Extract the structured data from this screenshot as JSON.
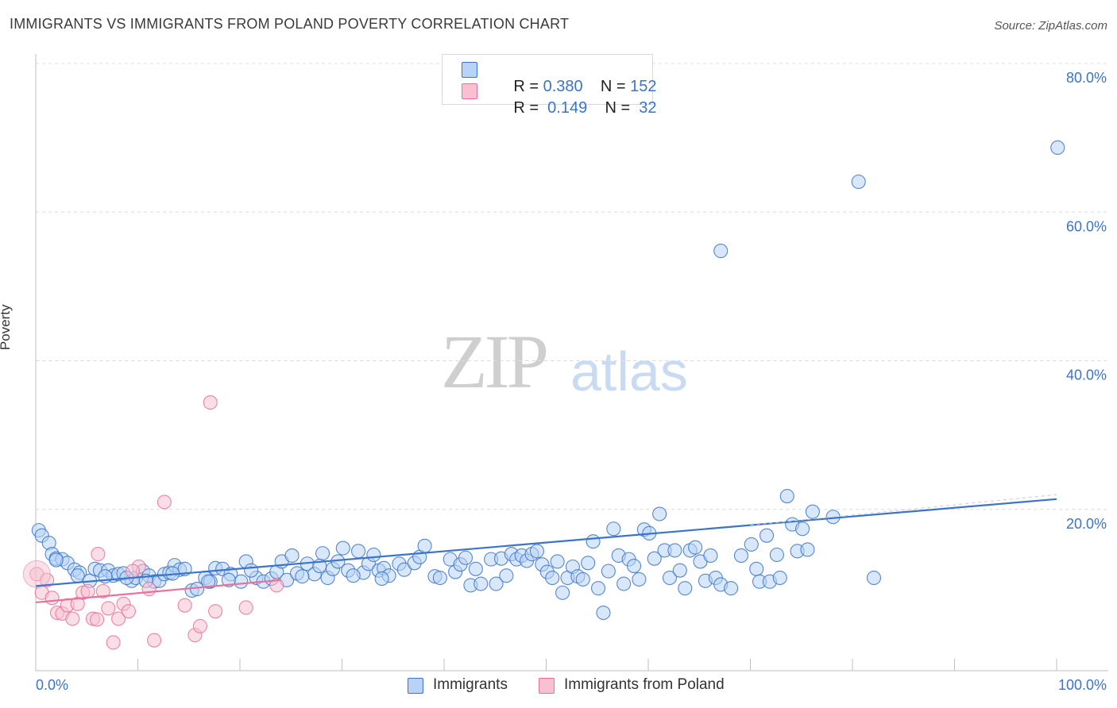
{
  "title": "IMMIGRANTS VS IMMIGRANTS FROM POLAND POVERTY CORRELATION CHART",
  "source": "Source: ZipAtlas.com",
  "watermark_zip": "ZIP",
  "watermark_atlas": "atlas",
  "colors": {
    "blue": "#3b74c9",
    "blue_fill": "#b8d3f5",
    "pink": "#e8719a",
    "pink_fill": "#f6c2d2"
  },
  "legend": {
    "r1_label": "R = ",
    "r1_value": "0.380",
    "n1_label": "N = ",
    "n1_value": "152",
    "r2_label": "R = ",
    "r2_value": " 0.149",
    "n2_label": "N = ",
    "n2_value": " 32"
  },
  "bottom_legend": {
    "s1": "Immigrants",
    "s2": "Immigrants from Poland"
  },
  "chart_data": {
    "type": "scatter",
    "title": "IMMIGRANTS VS IMMIGRANTS FROM POLAND POVERTY CORRELATION CHART",
    "xlabel": "",
    "ylabel": "Poverty",
    "xlim": [
      0,
      100
    ],
    "ylim": [
      0,
      80
    ],
    "y_ticks": [
      "20.0%",
      "40.0%",
      "60.0%",
      "80.0%"
    ],
    "x_ticks": [
      "0.0%",
      "100.0%"
    ],
    "grid": true,
    "series": [
      {
        "name": "Immigrants",
        "color": "#3b74c9",
        "trend": {
          "x": [
            0,
            100
          ],
          "y": [
            11.5,
            23.2
          ]
        },
        "points": [
          [
            0.3,
            19
          ],
          [
            0.6,
            18.3
          ],
          [
            1.3,
            17.3
          ],
          [
            1.6,
            15.8
          ],
          [
            2,
            15.2
          ],
          [
            2.6,
            15.1
          ],
          [
            3.1,
            14.6
          ],
          [
            3.8,
            13.7
          ],
          [
            4.3,
            13.3
          ],
          [
            5.3,
            12.2
          ],
          [
            5.8,
            13.8
          ],
          [
            6.3,
            13.6
          ],
          [
            7.1,
            13.6
          ],
          [
            7.6,
            12.9
          ],
          [
            8.1,
            13.1
          ],
          [
            8.6,
            13.2
          ],
          [
            9.4,
            12.2
          ],
          [
            9.8,
            12.6
          ],
          [
            10.5,
            13.5
          ],
          [
            11.1,
            12.9
          ],
          [
            11.6,
            12.1
          ],
          [
            12.1,
            12.2
          ],
          [
            12.6,
            13.1
          ],
          [
            13.1,
            13.3
          ],
          [
            13.6,
            14.3
          ],
          [
            14.1,
            13.7
          ],
          [
            14.6,
            13.8
          ],
          [
            15.3,
            10.9
          ],
          [
            15.8,
            11.1
          ],
          [
            16.6,
            12.6
          ],
          [
            17.1,
            12.1
          ],
          [
            17.6,
            13.9
          ],
          [
            18.3,
            13.8
          ],
          [
            19.1,
            13.1
          ],
          [
            20.1,
            12.1
          ],
          [
            20.6,
            14.8
          ],
          [
            21.6,
            12.6
          ],
          [
            22.3,
            12.1
          ],
          [
            23.1,
            12.5
          ],
          [
            23.6,
            13.4
          ],
          [
            24.1,
            14.8
          ],
          [
            24.6,
            12.3
          ],
          [
            25.6,
            13.2
          ],
          [
            26.6,
            14.5
          ],
          [
            27.3,
            13.1
          ],
          [
            28.1,
            15.9
          ],
          [
            28.6,
            12.6
          ],
          [
            29.1,
            13.8
          ],
          [
            30.1,
            16.6
          ],
          [
            30.6,
            13.6
          ],
          [
            31.6,
            16.2
          ],
          [
            32.1,
            13.3
          ],
          [
            32.6,
            14.5
          ],
          [
            33.1,
            15.7
          ],
          [
            33.6,
            13.6
          ],
          [
            34.1,
            13.9
          ],
          [
            34.6,
            12.9
          ],
          [
            35.6,
            14.5
          ],
          [
            36.1,
            13.7
          ],
          [
            37.1,
            14.6
          ],
          [
            37.6,
            15.4
          ],
          [
            38.1,
            16.9
          ],
          [
            39.1,
            12.8
          ],
          [
            39.6,
            12.6
          ],
          [
            40.6,
            15.1
          ],
          [
            41.1,
            13.4
          ],
          [
            41.6,
            14.4
          ],
          [
            42.1,
            15.3
          ],
          [
            42.6,
            11.6
          ],
          [
            43.1,
            13.8
          ],
          [
            43.6,
            11.8
          ],
          [
            44.6,
            15.1
          ],
          [
            45.1,
            11.8
          ],
          [
            45.6,
            15.2
          ],
          [
            46.1,
            12.9
          ],
          [
            46.6,
            15.8
          ],
          [
            47.1,
            15.1
          ],
          [
            47.6,
            15.6
          ],
          [
            48.1,
            14.9
          ],
          [
            48.6,
            15.8
          ],
          [
            49.1,
            16.2
          ],
          [
            49.6,
            14.4
          ],
          [
            50.1,
            13.4
          ],
          [
            50.6,
            12.6
          ],
          [
            51.1,
            14.8
          ],
          [
            51.6,
            10.6
          ],
          [
            52.1,
            12.6
          ],
          [
            52.6,
            14.1
          ],
          [
            53.1,
            12.8
          ],
          [
            53.6,
            12.4
          ],
          [
            54.1,
            14.6
          ],
          [
            54.6,
            17.5
          ],
          [
            55.1,
            11.2
          ],
          [
            55.6,
            7.9
          ],
          [
            56.1,
            13.5
          ],
          [
            56.6,
            19.2
          ],
          [
            57.1,
            15.6
          ],
          [
            57.6,
            11.8
          ],
          [
            58.1,
            15.1
          ],
          [
            58.6,
            14.2
          ],
          [
            59.1,
            12.4
          ],
          [
            59.6,
            19.1
          ],
          [
            60.1,
            18.6
          ],
          [
            60.6,
            15.2
          ],
          [
            61.1,
            21.2
          ],
          [
            61.6,
            16.3
          ],
          [
            62.1,
            12.6
          ],
          [
            62.6,
            16.3
          ],
          [
            63.1,
            13.6
          ],
          [
            63.6,
            11.2
          ],
          [
            64.1,
            16.3
          ],
          [
            64.6,
            16.7
          ],
          [
            65.1,
            14.8
          ],
          [
            65.6,
            12.2
          ],
          [
            66.1,
            15.6
          ],
          [
            66.6,
            12.6
          ],
          [
            67.1,
            11.7
          ],
          [
            68.1,
            11.2
          ],
          [
            69.1,
            15.6
          ],
          [
            70.1,
            17.1
          ],
          [
            70.6,
            13.8
          ],
          [
            70.9,
            12.1
          ],
          [
            71.6,
            18.3
          ],
          [
            71.9,
            12.1
          ],
          [
            72.6,
            15.7
          ],
          [
            72.9,
            12.6
          ],
          [
            73.6,
            23.6
          ],
          [
            74.1,
            19.8
          ],
          [
            74.6,
            16.2
          ],
          [
            75.1,
            19.2
          ],
          [
            75.6,
            16.4
          ],
          [
            76.1,
            21.5
          ],
          [
            78.1,
            20.8
          ],
          [
            82.1,
            12.6
          ],
          [
            80.6,
            65.9
          ],
          [
            67.1,
            56.6
          ],
          [
            100.1,
            70.5
          ],
          [
            2,
            15
          ],
          [
            4.1,
            12.9
          ],
          [
            6.8,
            12.8
          ],
          [
            8.9,
            12.6
          ],
          [
            10.8,
            12.2
          ],
          [
            13.4,
            13.2
          ],
          [
            16.9,
            12.1
          ],
          [
            18.9,
            12.3
          ],
          [
            21.1,
            13.6
          ],
          [
            25.1,
            15.6
          ],
          [
            26.1,
            12.8
          ],
          [
            27.8,
            14.2
          ],
          [
            29.6,
            14.8
          ],
          [
            31.1,
            12.9
          ],
          [
            33.9,
            12.5
          ]
        ]
      },
      {
        "name": "Immigrants from Poland",
        "color": "#e8719a",
        "trend": {
          "x": [
            0,
            24
          ],
          "y": [
            9.3,
            12.3
          ]
        },
        "points": [
          [
            0.1,
            13.1
          ],
          [
            0.6,
            10.6
          ],
          [
            1.1,
            12.3
          ],
          [
            1.6,
            9.9
          ],
          [
            2.1,
            7.9
          ],
          [
            2.6,
            7.8
          ],
          [
            3.1,
            8.9
          ],
          [
            3.6,
            7.1
          ],
          [
            4.1,
            9.1
          ],
          [
            4.6,
            10.6
          ],
          [
            5.1,
            10.8
          ],
          [
            5.6,
            7.1
          ],
          [
            6.1,
            15.8
          ],
          [
            6.6,
            10.8
          ],
          [
            7.1,
            8.5
          ],
          [
            7.6,
            3.9
          ],
          [
            8.1,
            7.1
          ],
          [
            8.6,
            9.1
          ],
          [
            9.1,
            8.1
          ],
          [
            10.1,
            14.1
          ],
          [
            11.1,
            11.1
          ],
          [
            11.6,
            4.2
          ],
          [
            12.6,
            22.8
          ],
          [
            14.6,
            8.9
          ],
          [
            15.6,
            4.9
          ],
          [
            16.1,
            6.1
          ],
          [
            17.1,
            36.2
          ],
          [
            17.6,
            8.1
          ],
          [
            20.6,
            8.6
          ],
          [
            23.6,
            11.6
          ],
          [
            6,
            7
          ],
          [
            9.5,
            13.5
          ]
        ]
      }
    ]
  }
}
